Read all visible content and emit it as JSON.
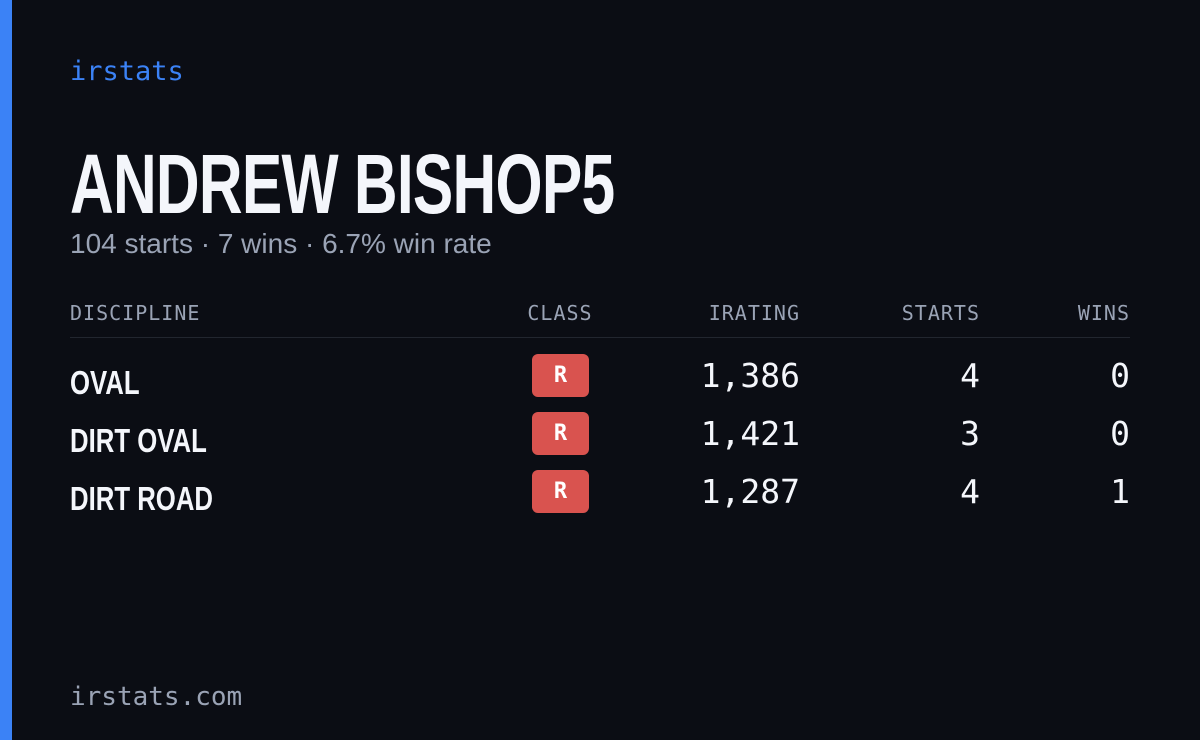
{
  "brand": "irstats",
  "driver": {
    "name": "ANDREW BISHOP5",
    "summary": "104 starts · 7 wins · 6.7% win rate"
  },
  "table": {
    "headers": [
      "DISCIPLINE",
      "CLASS",
      "IRATING",
      "STARTS",
      "WINS"
    ],
    "rows": [
      [
        "OVAL",
        "R",
        "1,386",
        "4",
        "0"
      ],
      [
        "DIRT OVAL",
        "R",
        "1,421",
        "3",
        "0"
      ],
      [
        "DIRT ROAD",
        "R",
        "1,287",
        "4",
        "1"
      ]
    ]
  },
  "footer": "irstats.com"
}
